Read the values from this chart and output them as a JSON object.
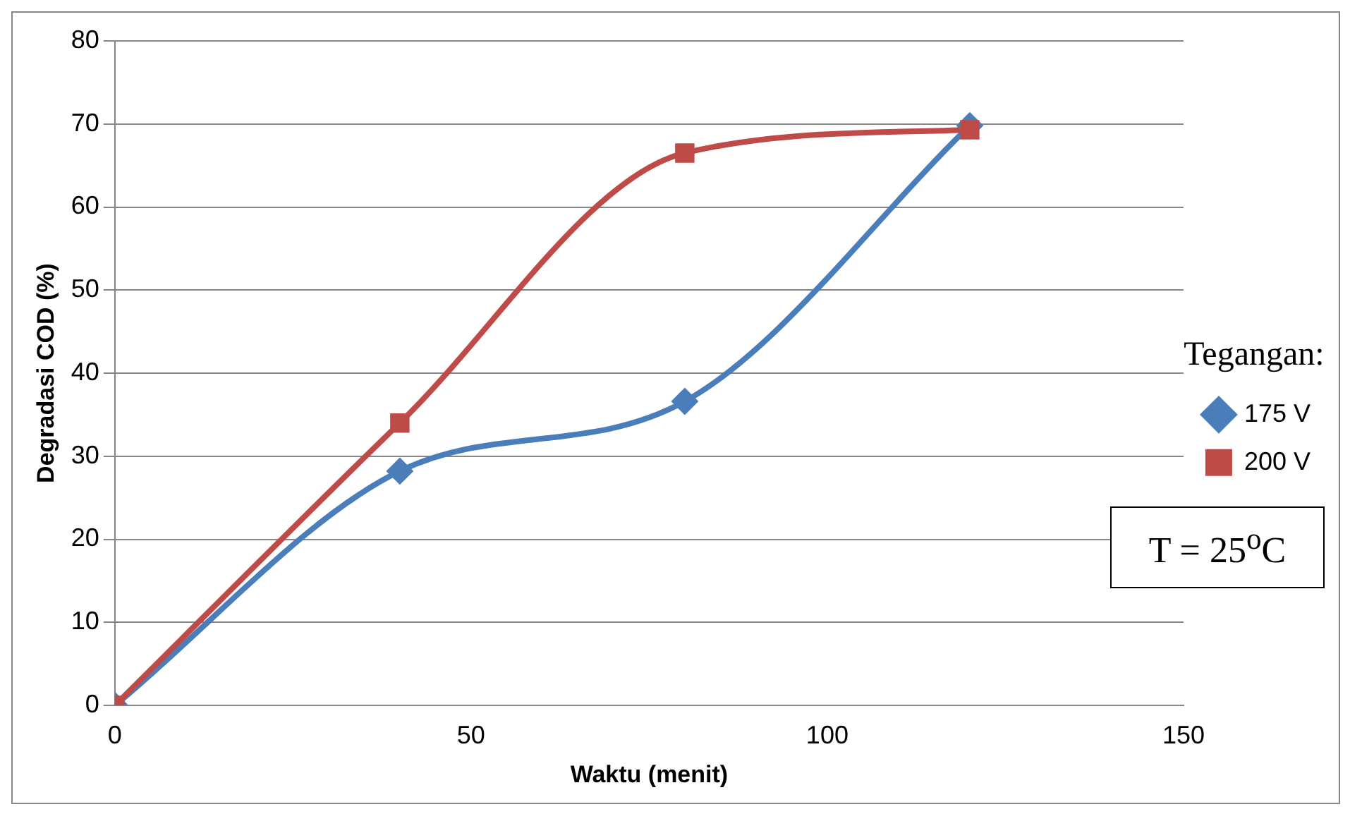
{
  "chart_data": {
    "type": "line",
    "xlabel": "Waktu (menit)",
    "ylabel": "Degradasi COD (%)",
    "legend_title": "Tegangan:",
    "x": [
      0,
      40,
      80,
      120
    ],
    "xlim": [
      0,
      150
    ],
    "xticks": [
      0,
      50,
      100,
      150
    ],
    "ylim": [
      0,
      80
    ],
    "yticks": [
      0,
      10,
      20,
      30,
      40,
      50,
      60,
      70,
      80
    ],
    "series": [
      {
        "name": "175 V",
        "color": "#4a7ebb",
        "values": [
          0,
          28.2,
          36.6,
          69.8
        ],
        "marker": "diamond"
      },
      {
        "name": "200 V",
        "color": "#be4b48",
        "values": [
          0,
          34,
          66.5,
          69.3
        ],
        "marker": "square"
      }
    ],
    "grid": "y",
    "legend": "right",
    "line_style": "solid",
    "annotations": [
      "T = 25$^{o}$C"
    ]
  }
}
